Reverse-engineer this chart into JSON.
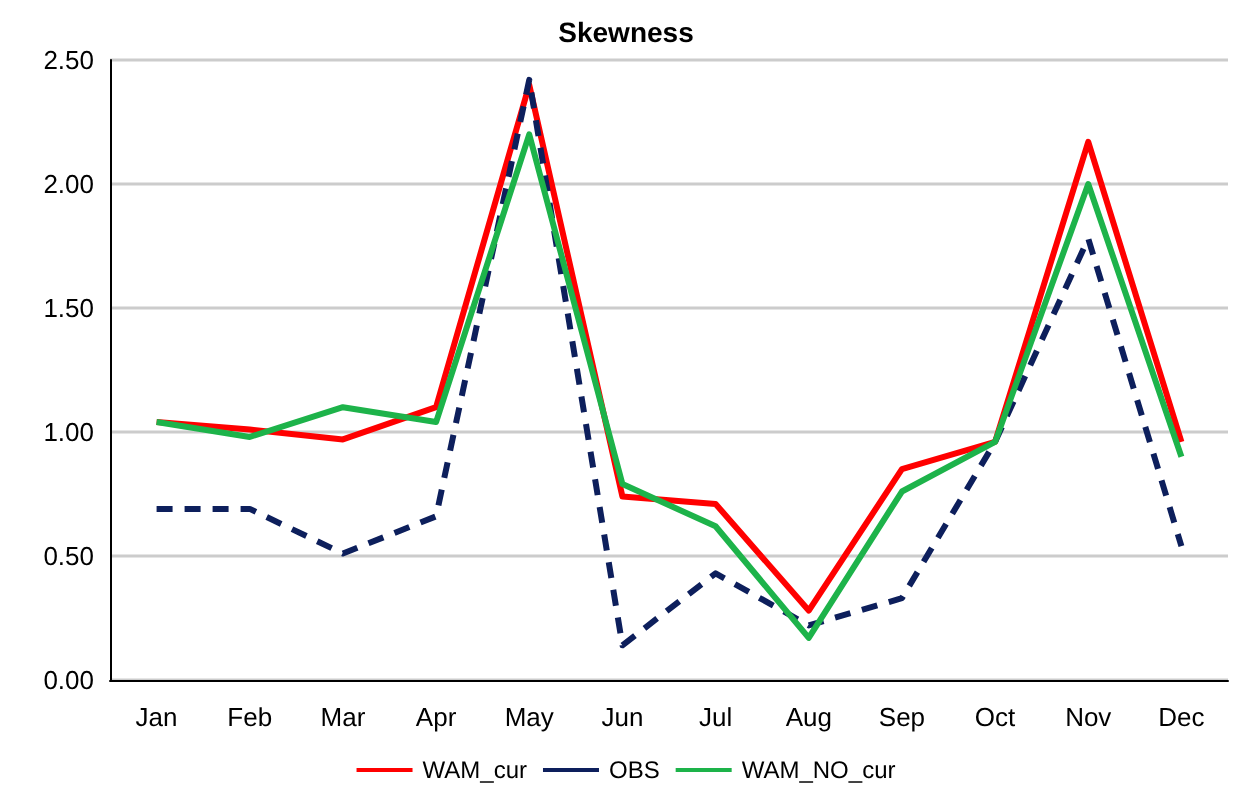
{
  "chart_data": {
    "type": "line",
    "title": "Skewness",
    "categories": [
      "Jan",
      "Feb",
      "Mar",
      "Apr",
      "May",
      "Jun",
      "Jul",
      "Aug",
      "Sep",
      "Oct",
      "Nov",
      "Dec"
    ],
    "series": [
      {
        "name": "WAM_cur",
        "color": "#ff0000",
        "line_style": "solid",
        "values": [
          1.04,
          1.01,
          0.97,
          1.1,
          2.4,
          0.74,
          0.71,
          0.28,
          0.85,
          0.96,
          2.17,
          0.96
        ]
      },
      {
        "name": "OBS",
        "color": "#0d1f5c",
        "line_style": "dashed",
        "values": [
          0.69,
          0.69,
          0.51,
          0.66,
          2.42,
          0.14,
          0.43,
          0.22,
          0.33,
          0.96,
          1.78,
          0.54
        ]
      },
      {
        "name": "WAM_NO_cur",
        "color": "#1db34a",
        "line_style": "solid",
        "values": [
          1.04,
          0.98,
          1.1,
          1.04,
          2.2,
          0.79,
          0.62,
          0.17,
          0.76,
          0.96,
          2.0,
          0.9
        ]
      }
    ],
    "ylim": [
      0,
      2.5
    ],
    "yticks": [
      {
        "value": 0,
        "label": "0.00"
      },
      {
        "value": 0.5,
        "label": "0.50"
      },
      {
        "value": 1,
        "label": "1.00"
      },
      {
        "value": 1.5,
        "label": "1.50"
      },
      {
        "value": 2,
        "label": "2.00"
      },
      {
        "value": 2.5,
        "label": "2.50"
      }
    ],
    "grid": "y",
    "legend": "bottom",
    "marker": "none"
  }
}
